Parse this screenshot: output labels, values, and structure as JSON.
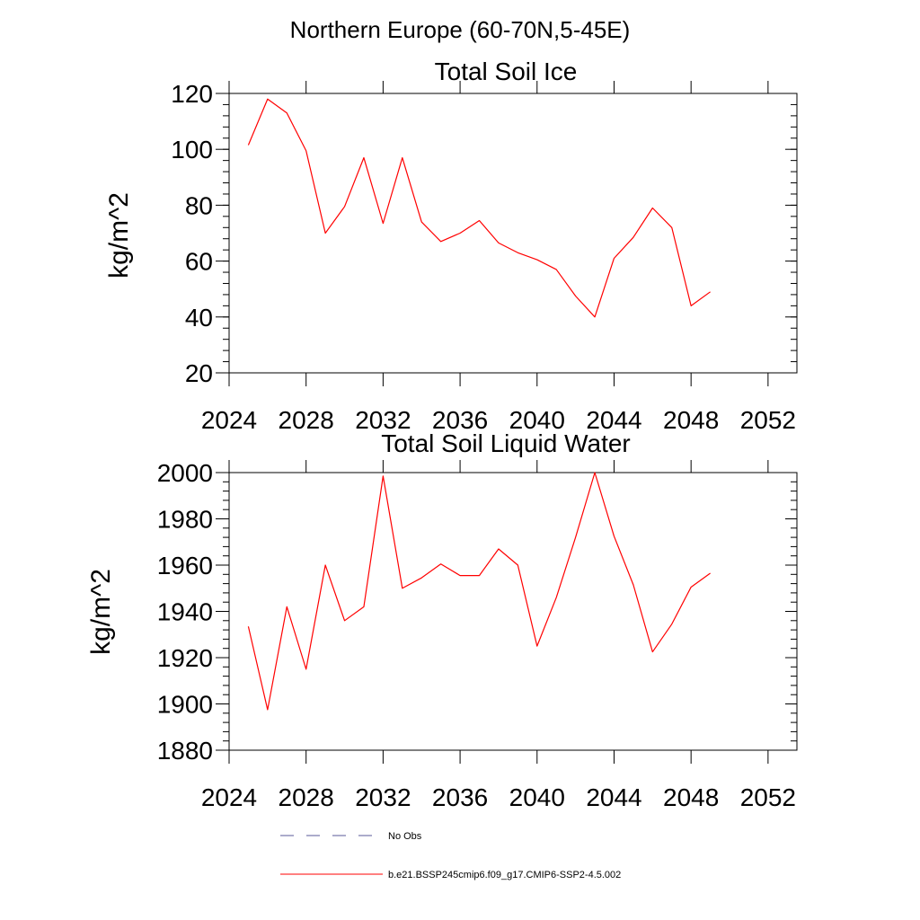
{
  "figure_title": "Northern Europe (60-70N,5-45E)",
  "colors": {
    "axis": "#000000",
    "model_line": "#ff0000",
    "obs_line": "#5a5a9a"
  },
  "chart_data": [
    {
      "type": "line",
      "title": "Total Soil Ice",
      "xlabel": "",
      "ylabel": "kg/m^2",
      "xlim": [
        2024,
        2053.5
      ],
      "ylim": [
        20,
        120
      ],
      "xticks": [
        2024,
        2028,
        2032,
        2036,
        2040,
        2044,
        2048,
        2052
      ],
      "yticks": [
        20,
        40,
        60,
        80,
        100,
        120
      ],
      "series": [
        {
          "name": "b.e21.BSSP245cmip6.f09_g17.CMIP6-SSP2-4.5.002",
          "x": [
            2025,
            2026,
            2027,
            2028,
            2029,
            2030,
            2031,
            2032,
            2033,
            2034,
            2035,
            2036,
            2037,
            2038,
            2039,
            2040,
            2041,
            2042,
            2043,
            2044,
            2045,
            2046,
            2047,
            2048,
            2049
          ],
          "values": [
            101.5,
            118,
            113,
            99.5,
            70,
            79.5,
            97,
            73.5,
            97,
            74,
            67,
            70,
            74.5,
            66.5,
            63,
            60.5,
            57,
            47.5,
            40,
            61,
            68.5,
            79,
            72,
            44,
            49
          ]
        }
      ]
    },
    {
      "type": "line",
      "title": "Total Soil Liquid Water",
      "xlabel": "",
      "ylabel": "kg/m^2",
      "xlim": [
        2024,
        2053.5
      ],
      "ylim": [
        1880,
        2000
      ],
      "xticks": [
        2024,
        2028,
        2032,
        2036,
        2040,
        2044,
        2048,
        2052
      ],
      "yticks": [
        1880,
        1900,
        1920,
        1940,
        1960,
        1980,
        2000
      ],
      "series": [
        {
          "name": "b.e21.BSSP245cmip6.f09_g17.CMIP6-SSP2-4.5.002",
          "x": [
            2025,
            2026,
            2027,
            2028,
            2029,
            2030,
            2031,
            2032,
            2033,
            2034,
            2035,
            2036,
            2037,
            2038,
            2039,
            2040,
            2041,
            2042,
            2043,
            2044,
            2045,
            2046,
            2047,
            2048,
            2049
          ],
          "values": [
            1933.5,
            1897.5,
            1942,
            1915,
            1960,
            1936,
            1942,
            1998.5,
            1950,
            1954.5,
            1960.5,
            1955.5,
            1955.5,
            1967,
            1960,
            1925,
            1946,
            1972,
            2000,
            1972.5,
            1951.5,
            1922.5,
            1934.5,
            1950.5,
            1956.5
          ]
        }
      ]
    }
  ],
  "legend": [
    {
      "label": "No Obs",
      "style": "dashed"
    },
    {
      "label": "b.e21.BSSP245cmip6.f09_g17.CMIP6-SSP2-4.5.002",
      "style": "solid"
    }
  ]
}
